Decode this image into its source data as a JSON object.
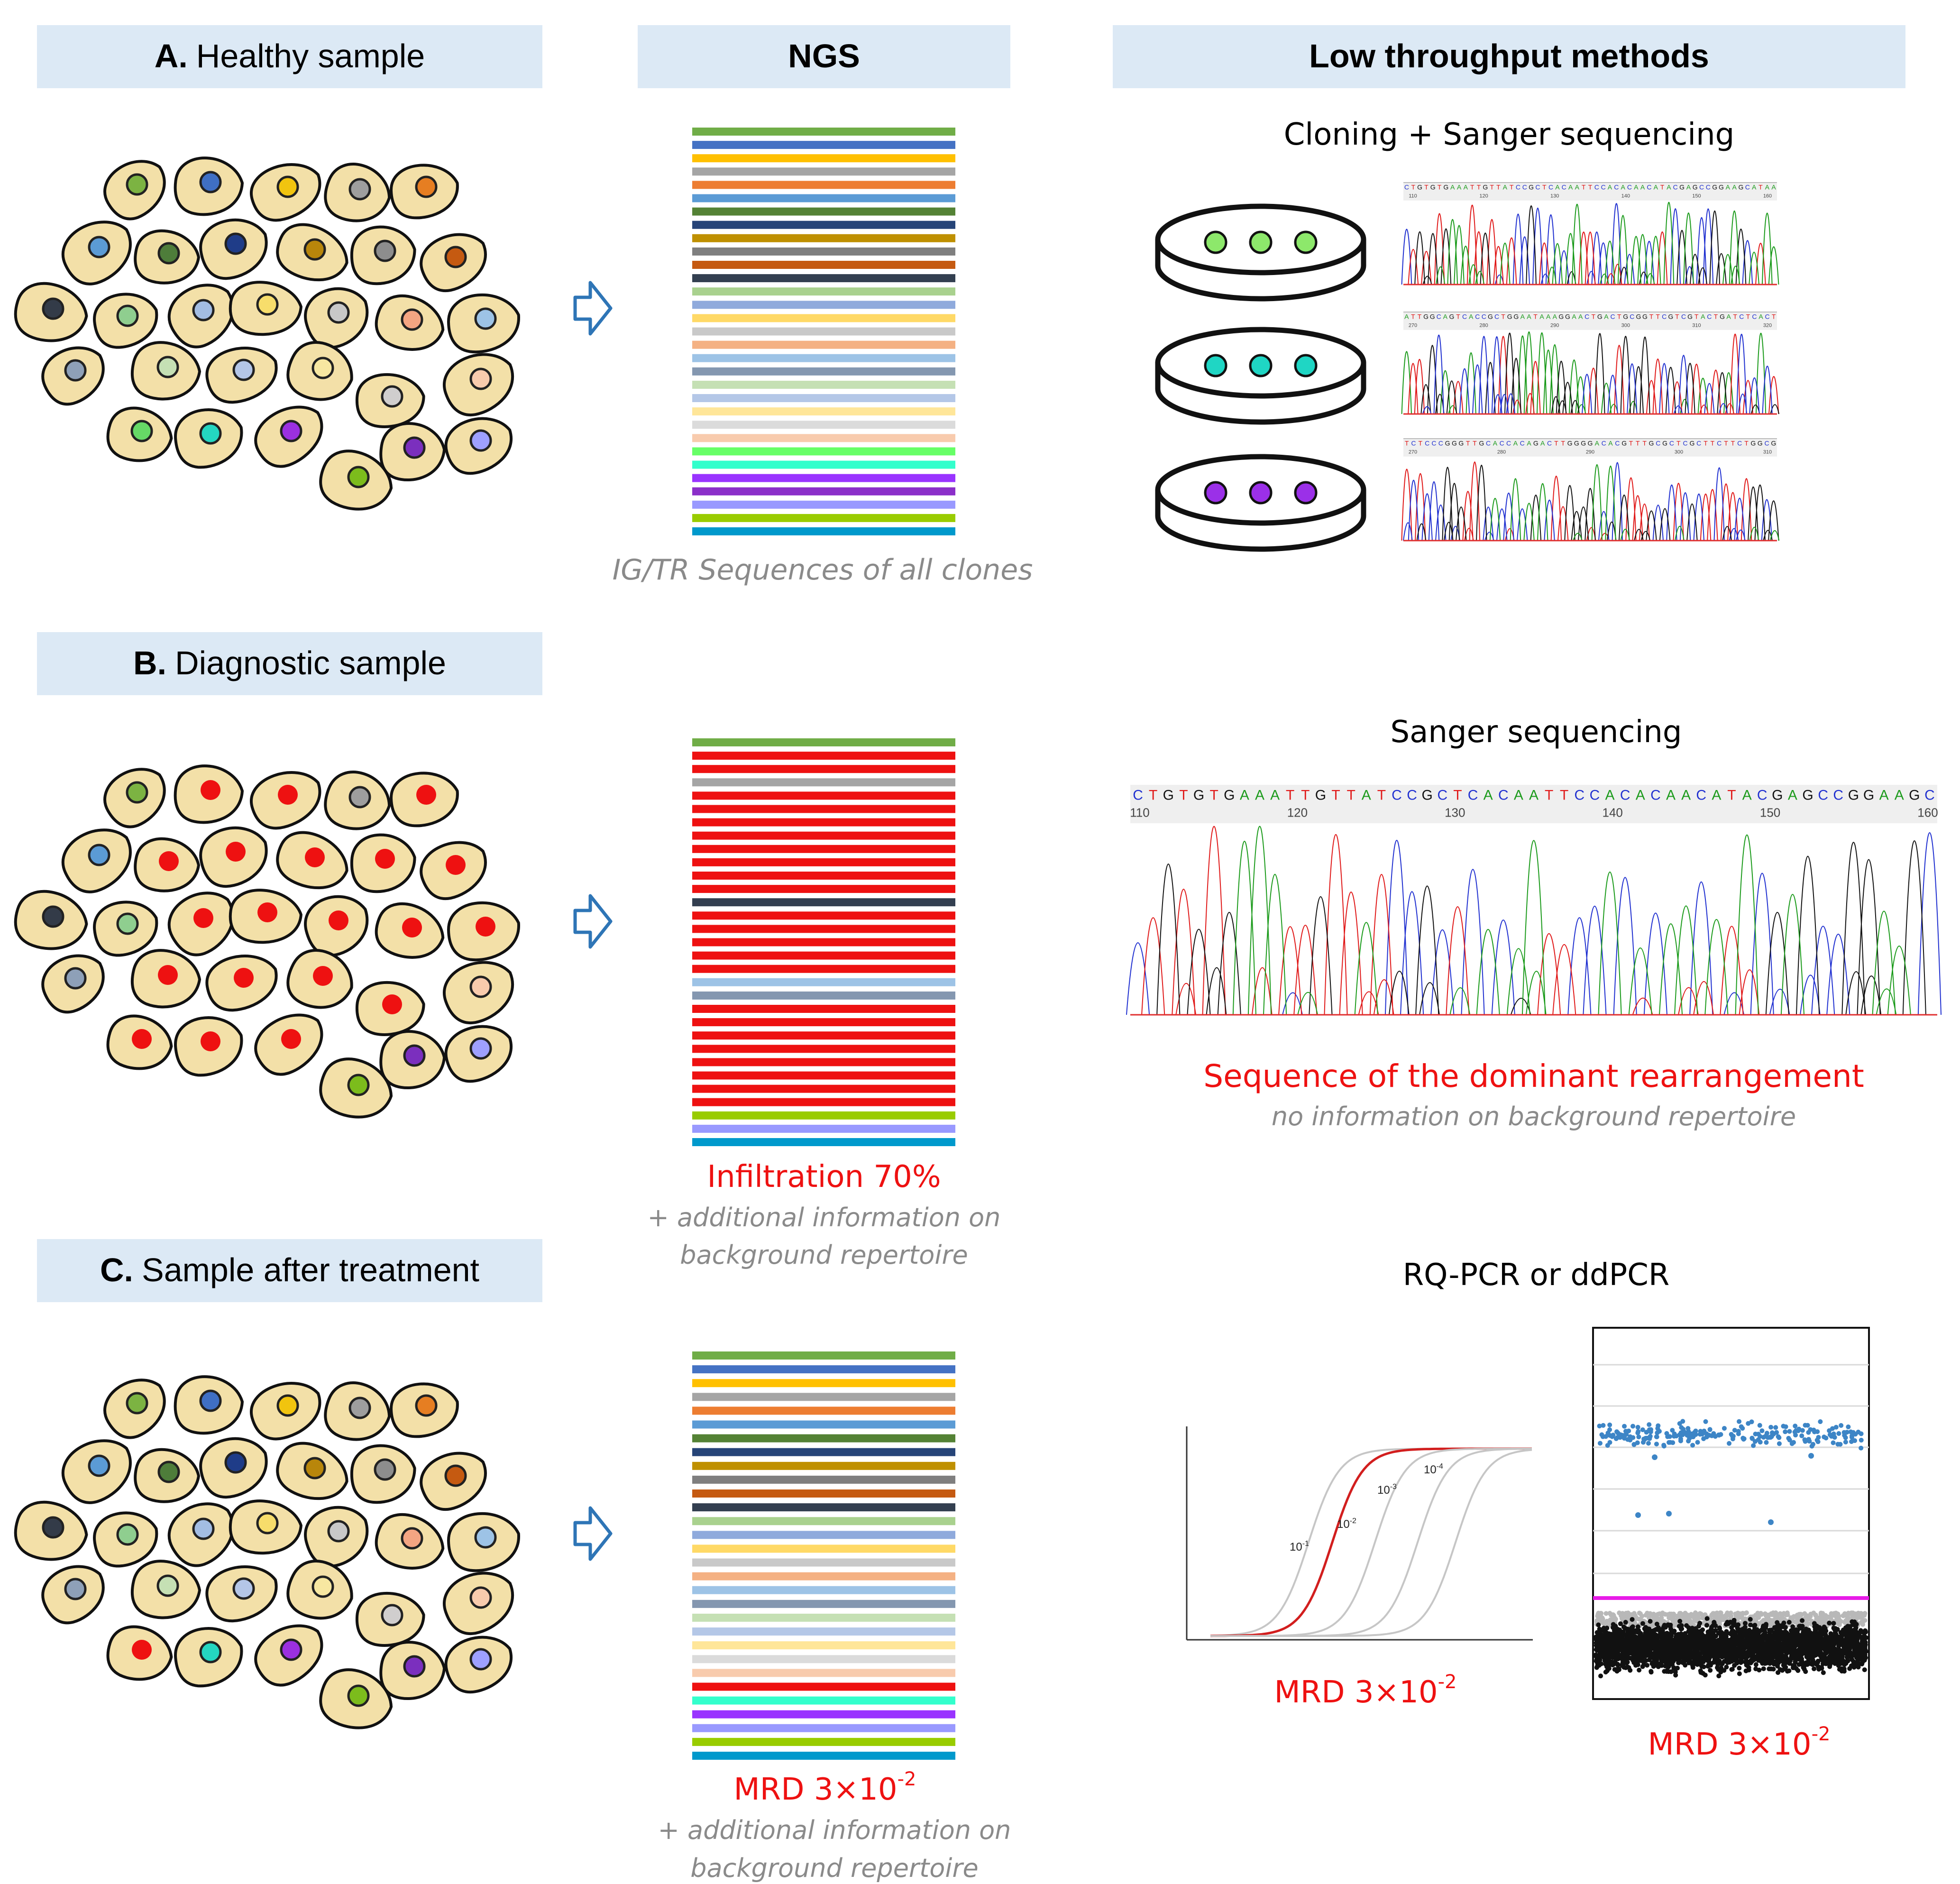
{
  "headers": {
    "a_letter": "A.",
    "a_text": "Healthy sample",
    "b_letter": "B.",
    "b_text": "Diagnostic sample",
    "c_letter": "C.",
    "c_text": "Sample after treatment",
    "ngs": "NGS",
    "low_throughput": "Low throughput methods"
  },
  "captions": {
    "ngs_a": "IG/TR Sequences of all clones",
    "ngs_b_main": "Infiltration 70%",
    "ngs_b_sub1": "+ additional information on",
    "ngs_b_sub2": "background repertoire",
    "ngs_c_main": "MRD 3×10",
    "ngs_c_exp": "-2",
    "ngs_c_sub1": "+ additional information on",
    "ngs_c_sub2": "background repertoire"
  },
  "low_throughput": {
    "cloning_title": "Cloning + Sanger sequencing",
    "sanger_title": "Sanger sequencing",
    "dominant": "Sequence of the dominant rearrangement",
    "no_info": "no information on background repertoire",
    "pcr_title": "RQ-PCR or ddPCR",
    "mrd_pcr_main": "MRD 3×10",
    "mrd_pcr_exp": "-2",
    "mrd_dd_main": "MRD 3×10",
    "mrd_dd_exp": "-2"
  },
  "sanger": {
    "sequence": "CTGTGTGAAATTGTTATCCGCTCACAATTCCACACAACATACGAGCCGGAAGC",
    "positions": [
      "110",
      "120",
      "130",
      "140",
      "150",
      "160"
    ]
  },
  "dish_sequences": [
    "CTGTGTGAAATTGTTATCCGCTCACAATTCCACACAACATACGAGCCGGAAGCATAA",
    "ATTGGCAGTCACCGCTGGAATAAAGGAACTGACTGCGGTTCGTCGTACTGATCTCACT",
    "TCTCCCGGGTTGCACCACAGACTTGGGGACACGTTTGCGCTCGCTTCTTCTGGCG"
  ],
  "dish_positions": [
    [
      "110",
      "120",
      "130",
      "140",
      "150",
      "160"
    ],
    [
      "270",
      "280",
      "290",
      "300",
      "310",
      "320"
    ],
    [
      "270",
      "280",
      "290",
      "300",
      "310"
    ]
  ],
  "pcr_curve_labels": [
    {
      "base": "10",
      "exp": "-1"
    },
    {
      "base": "10",
      "exp": "-2"
    },
    {
      "base": "10",
      "exp": "-3"
    },
    {
      "base": "10",
      "exp": "-4"
    }
  ],
  "colors": {
    "cell_fill": "#f3e0a8",
    "header_bg": "#dce9f5",
    "red": "#ee1111",
    "arrow": "#2e75b6",
    "caption_gray": "#8a8a8a",
    "base_A": "#1a9a1a",
    "base_C": "#2030d0",
    "base_G": "#111111",
    "base_T": "#e01818",
    "dd_positive": "#3d85c6",
    "dd_threshold": "#e81ce8"
  },
  "nucleus_colors": {
    "healthy": [
      "#7cb342",
      "#3f6fc4",
      "#f1c40f",
      "#9e9e9e",
      "#e67e22",
      "#5b9bd5",
      "#4e7d3a",
      "#1f3c88",
      "#b8860b",
      "#8d8d8d",
      "#c55a11",
      "#333b48",
      "#8fce8f",
      "#a3bde3",
      "#f7dd6b",
      "#c8c8c8",
      "#f4a582",
      "#9dc3e6",
      "#8ea0b8",
      "#c5e0b4",
      "#b4c6e7",
      "#f7e7a1",
      "#d0cece",
      "#f8cbad",
      "#66d966",
      "#24d6c1",
      "#9b30e0",
      "#7b2fbe",
      "#9ea0ff",
      "#7cbc1c",
      "#1e90c8",
      "#b0c4de"
    ],
    "ngs_a": [
      "#70ad47",
      "#4472c4",
      "#ffc000",
      "#a5a5a5",
      "#ed7d31",
      "#5b9bd5",
      "#548235",
      "#264478",
      "#bf9000",
      "#7f7f7f",
      "#c55a11",
      "#333f50",
      "#a9d18e",
      "#8faadc",
      "#ffd966",
      "#c9c9c9",
      "#f4b183",
      "#9dc3e6",
      "#8497b0",
      "#c5e0b4",
      "#b4c7e7",
      "#ffe699",
      "#dbdbdb",
      "#f8cbad",
      "#66ff66",
      "#33ffcc",
      "#9933ff",
      "#8b2fc9",
      "#9999ff",
      "#99cc00",
      "#0099cc"
    ],
    "ngs_b": [
      "#70ad47",
      "R",
      "R",
      "#a5a5a5",
      "R",
      "R",
      "R",
      "R",
      "R",
      "R",
      "R",
      "R",
      "#333f50",
      "R",
      "R",
      "R",
      "R",
      "R",
      "#9dc3e6",
      "#8497b0",
      "R",
      "R",
      "R",
      "R",
      "R",
      "R",
      "R",
      "R",
      "#99cc00",
      "#9999ff",
      "#0099cc"
    ],
    "ngs_c": [
      "#70ad47",
      "#4472c4",
      "#ffc000",
      "#a5a5a5",
      "#ed7d31",
      "#5b9bd5",
      "#548235",
      "#264478",
      "#bf9000",
      "#7f7f7f",
      "#c55a11",
      "#333f50",
      "#a9d18e",
      "#8faadc",
      "#ffd966",
      "#c9c9c9",
      "#f4b183",
      "#9dc3e6",
      "#8497b0",
      "#c5e0b4",
      "#b4c7e7",
      "#ffe699",
      "#dbdbdb",
      "#f8cbad",
      "#ee1111",
      "#33ffcc",
      "#9933ff",
      "#9999ff",
      "#99cc00",
      "#0099cc"
    ]
  }
}
